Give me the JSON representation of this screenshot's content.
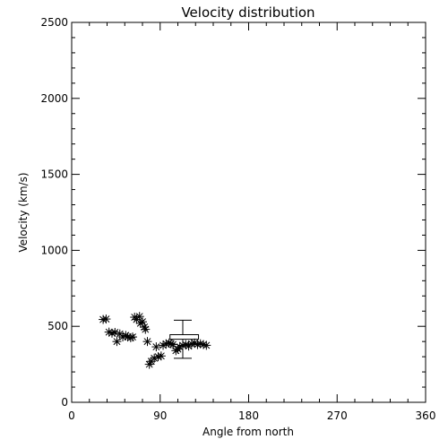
{
  "chart_data": {
    "type": "scatter",
    "title": "Velocity distribution",
    "xlabel": "Angle from north",
    "ylabel": "Velocity (km/s)",
    "xlim": [
      0,
      360
    ],
    "ylim": [
      0,
      2500
    ],
    "xticks": [
      0,
      90,
      180,
      270,
      360
    ],
    "yticks": [
      0,
      500,
      1000,
      1500,
      2000,
      2500
    ],
    "grid": false,
    "marker": "asterisk",
    "series": [
      {
        "points": [
          [
            32,
            545
          ],
          [
            35,
            548
          ],
          [
            38,
            462
          ],
          [
            41,
            455
          ],
          [
            44,
            460
          ],
          [
            46,
            400
          ],
          [
            49,
            450
          ],
          [
            52,
            430
          ],
          [
            55,
            440
          ],
          [
            57,
            430
          ],
          [
            60,
            425
          ],
          [
            62,
            430
          ],
          [
            64,
            560
          ],
          [
            66,
            545
          ],
          [
            69,
            565
          ],
          [
            70,
            520
          ],
          [
            72,
            530
          ],
          [
            74,
            495
          ],
          [
            75,
            480
          ],
          [
            77,
            400
          ],
          [
            79,
            250
          ],
          [
            81,
            270
          ],
          [
            84,
            290
          ],
          [
            86,
            365
          ],
          [
            88,
            300
          ],
          [
            91,
            305
          ],
          [
            93,
            375
          ],
          [
            96,
            385
          ],
          [
            99,
            390
          ],
          [
            101,
            385
          ],
          [
            103,
            380
          ],
          [
            106,
            340
          ],
          [
            108,
            350
          ],
          [
            110,
            365
          ],
          [
            113,
            375
          ],
          [
            116,
            380
          ],
          [
            119,
            370
          ],
          [
            122,
            385
          ],
          [
            125,
            390
          ],
          [
            128,
            380
          ],
          [
            131,
            385
          ],
          [
            134,
            380
          ],
          [
            137,
            375
          ]
        ]
      }
    ],
    "errorbar": {
      "x": 113,
      "mean": 415,
      "low": 290,
      "high": 540,
      "box_x": [
        100,
        129
      ],
      "box_y": [
        415,
        445
      ]
    }
  }
}
